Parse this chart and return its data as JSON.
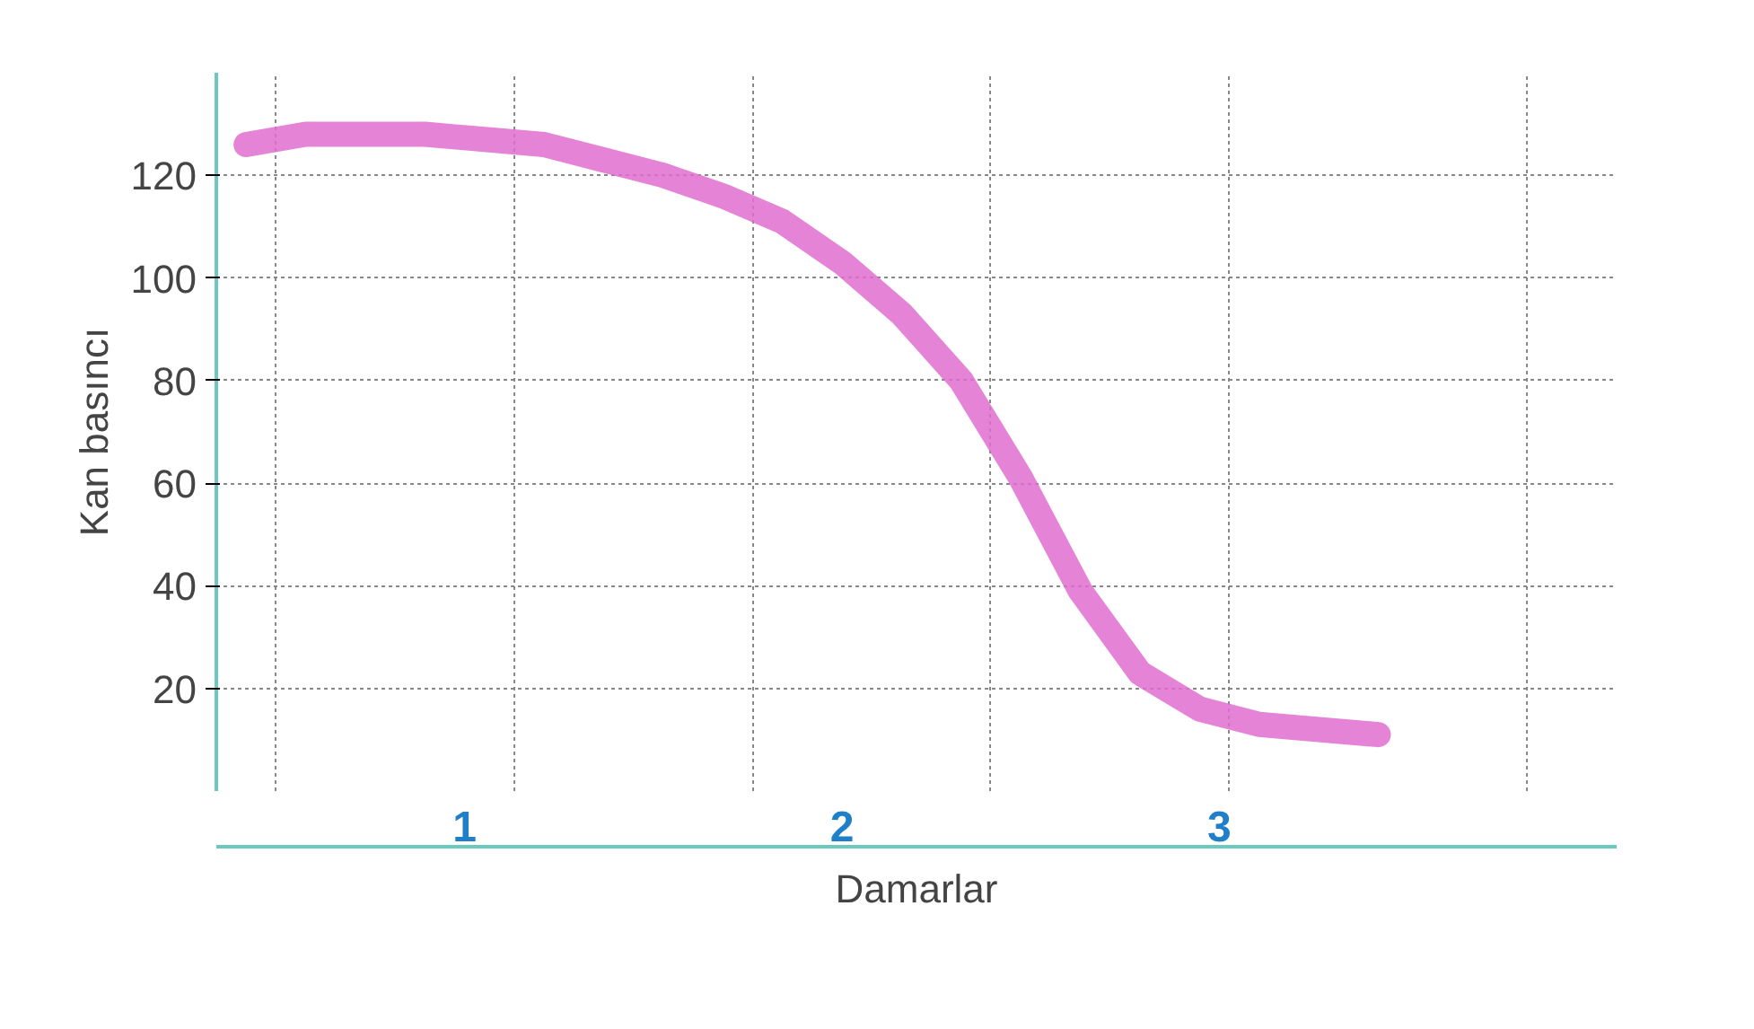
{
  "chart_data": {
    "type": "line",
    "xlabel": "Damarlar",
    "ylabel": "Kan basıncı",
    "categories": [
      null,
      null,
      null,
      null,
      null,
      null,
      null,
      null,
      null,
      null,
      null,
      null,
      null,
      null,
      null,
      null,
      null,
      null,
      null,
      null
    ],
    "series": [
      {
        "color": "#e06fd0",
        "values": [
          126,
          128,
          128,
          128,
          127,
          126,
          123,
          120,
          116,
          111,
          103,
          93,
          80,
          61,
          39,
          23,
          16,
          13,
          12,
          11
        ]
      }
    ],
    "ylim": [
      0,
      140
    ],
    "yticks": [
      20,
      40,
      60,
      80,
      100,
      120
    ],
    "grid": true,
    "tick_labels": "y",
    "marker": "none",
    "line_style": "solid",
    "annotations": [
      "1",
      "2",
      "3"
    ]
  }
}
